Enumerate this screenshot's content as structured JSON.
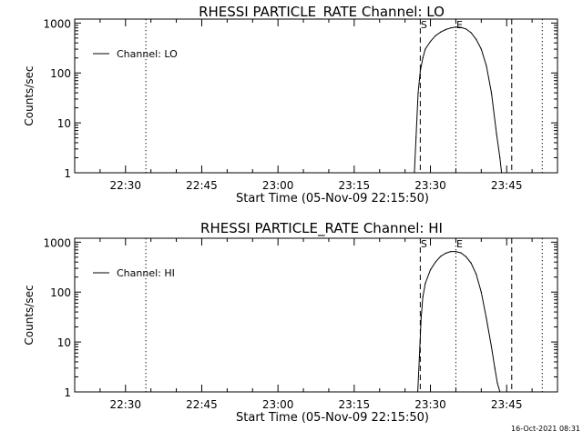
{
  "footer": {
    "timestamp": "16-Oct-2021 08:31"
  },
  "chart_data": [
    {
      "type": "line",
      "title": "RHESSI PARTICLE_RATE Channel: LO",
      "xlabel": "Start Time (05-Nov-09 22:15:50)",
      "ylabel": "Counts/sec",
      "yscale": "log",
      "ylim": [
        1,
        1200
      ],
      "xlim": [
        "22:20",
        "23:55"
      ],
      "x_ticks": [
        "22:30",
        "22:45",
        "23:00",
        "23:15",
        "23:30",
        "23:45"
      ],
      "y_ticks": [
        "1",
        "10",
        "100",
        "1000"
      ],
      "legend": "top-left",
      "series": [
        {
          "name": "Channel: LO",
          "x": [
            "23:26:50",
            "23:27:10",
            "23:27:35",
            "23:28:00",
            "23:28:30",
            "23:29:00",
            "23:30:00",
            "23:31:00",
            "23:32:00",
            "23:33:00",
            "23:34:00",
            "23:35:00",
            "23:36:00",
            "23:37:00",
            "23:38:00",
            "23:39:00",
            "23:40:00",
            "23:41:00",
            "23:42:00",
            "23:43:00",
            "23:43:40",
            "23:44:00"
          ],
          "values": [
            1,
            5,
            40,
            110,
            200,
            300,
            430,
            560,
            660,
            740,
            800,
            830,
            820,
            760,
            640,
            470,
            300,
            140,
            40,
            6,
            2,
            1
          ]
        }
      ],
      "markers": [
        {
          "label": "S",
          "x": "23:28:00",
          "style": "dashed"
        },
        {
          "label": "E",
          "x": "23:35:00",
          "style": "dotted"
        }
      ],
      "vertical_lines": [
        {
          "x": "22:34:00",
          "style": "dotted"
        },
        {
          "x": "23:28:00",
          "style": "dashed"
        },
        {
          "x": "23:35:00",
          "style": "dotted"
        },
        {
          "x": "23:46:00",
          "style": "dashed"
        },
        {
          "x": "23:52:00",
          "style": "dotted"
        }
      ]
    },
    {
      "type": "line",
      "title": "RHESSI PARTICLE_RATE Channel: HI",
      "xlabel": "Start Time (05-Nov-09 22:15:50)",
      "ylabel": "Counts/sec",
      "yscale": "log",
      "ylim": [
        1,
        1200
      ],
      "xlim": [
        "22:20",
        "23:55"
      ],
      "x_ticks": [
        "22:30",
        "22:45",
        "23:00",
        "23:15",
        "23:30",
        "23:45"
      ],
      "y_ticks": [
        "1",
        "10",
        "100",
        "1000"
      ],
      "legend": "top-left",
      "series": [
        {
          "name": "Channel: HI",
          "x": [
            "23:27:30",
            "23:27:50",
            "23:28:10",
            "23:28:30",
            "23:29:00",
            "23:30:00",
            "23:31:00",
            "23:32:00",
            "23:33:00",
            "23:34:00",
            "23:35:00",
            "23:36:00",
            "23:37:00",
            "23:38:00",
            "23:39:00",
            "23:40:00",
            "23:41:00",
            "23:42:00",
            "23:42:40",
            "23:43:10",
            "23:43:40"
          ],
          "values": [
            1,
            5,
            30,
            80,
            150,
            280,
            400,
            520,
            600,
            650,
            650,
            610,
            510,
            380,
            230,
            100,
            30,
            8,
            3,
            1.5,
            1
          ]
        }
      ],
      "markers": [
        {
          "label": "S",
          "x": "23:28:00",
          "style": "dashed"
        },
        {
          "label": "E",
          "x": "23:35:00",
          "style": "dotted"
        }
      ],
      "vertical_lines": [
        {
          "x": "22:34:00",
          "style": "dotted"
        },
        {
          "x": "23:28:00",
          "style": "dashed"
        },
        {
          "x": "23:35:00",
          "style": "dotted"
        },
        {
          "x": "23:46:00",
          "style": "dashed"
        },
        {
          "x": "23:52:00",
          "style": "dotted"
        }
      ]
    }
  ]
}
